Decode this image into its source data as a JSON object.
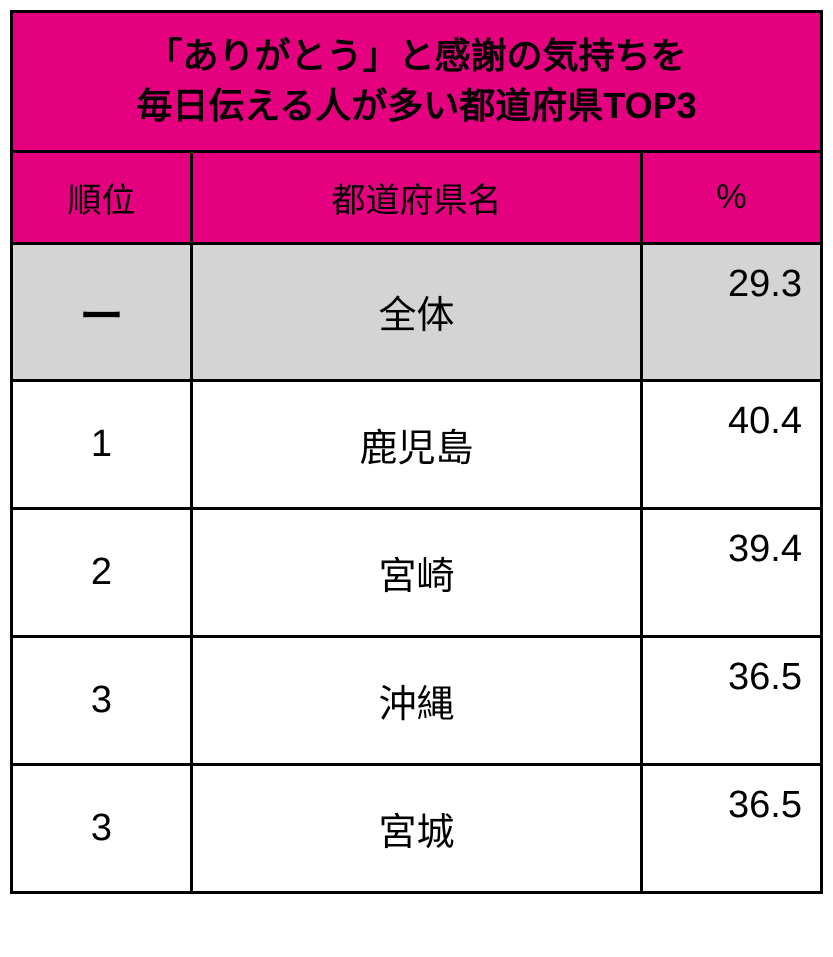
{
  "table": {
    "title_line1": "「ありがとう」と感謝の気持ちを",
    "title_line2": "毎日伝える人が多い都道府県TOP3",
    "columns": {
      "rank": "順位",
      "name": "都道府県名",
      "percent": "%"
    },
    "total_row": {
      "rank": "ー",
      "name": "全体",
      "percent": "29.3"
    },
    "rows": [
      {
        "rank": "1",
        "name": "鹿児島",
        "percent": "40.4"
      },
      {
        "rank": "2",
        "name": "宮崎",
        "percent": "39.4"
      },
      {
        "rank": "3",
        "name": "沖縄",
        "percent": "36.5"
      },
      {
        "rank": "3",
        "name": "宮城",
        "percent": "36.5"
      }
    ],
    "colors": {
      "header_bg": "#e5007f",
      "total_bg": "#d4d4d4",
      "data_bg": "#ffffff",
      "border": "#000000",
      "text": "#000000"
    },
    "fontsize": {
      "title": 36,
      "header": 34,
      "body": 38
    }
  }
}
